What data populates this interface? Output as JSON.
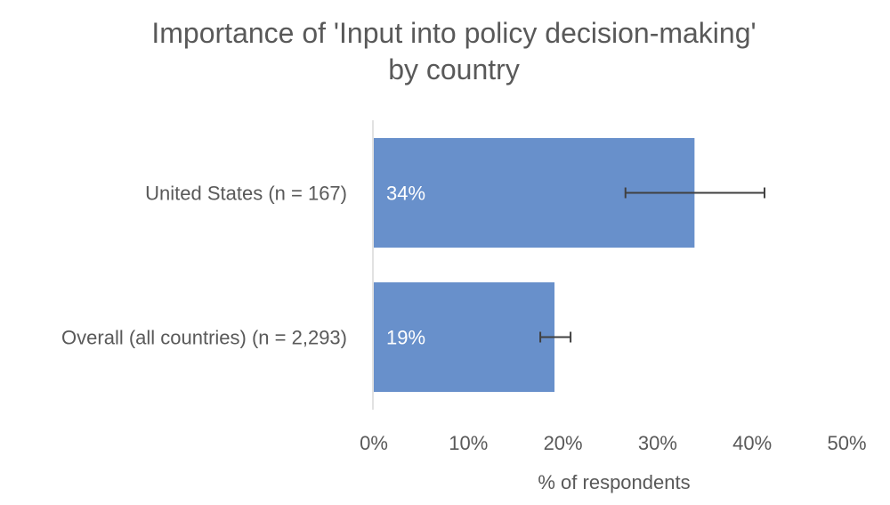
{
  "chart_data": {
    "type": "bar",
    "orientation": "horizontal",
    "title": [
      "Importance of 'Input into policy decision-making'",
      "by country"
    ],
    "categories": [
      "United States (n = 167)",
      "Overall (all countries) (n = 2,293)"
    ],
    "values": [
      33.9,
      19.1
    ],
    "data_labels": [
      "34%",
      "19%"
    ],
    "error_bars": [
      [
        26.6,
        41.3
      ],
      [
        17.6,
        20.8
      ]
    ],
    "xlabel": "% of respondents",
    "ylabel": "",
    "xlim": [
      0,
      50
    ],
    "xticks": [
      "0%",
      "10%",
      "20%",
      "30%",
      "40%",
      "50%"
    ],
    "grid": false,
    "colors": {
      "bar": "#6890CB",
      "error": "#404040",
      "text": "#595959"
    }
  }
}
